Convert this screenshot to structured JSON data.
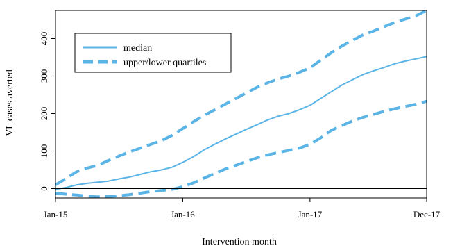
{
  "chart_data": {
    "type": "line",
    "title": "",
    "xlabel": "Intervention month",
    "ylabel": "VL cases averted",
    "x_ticks": [
      {
        "label": "Jan-15",
        "index": 0
      },
      {
        "label": "Jan-16",
        "index": 12
      },
      {
        "label": "Jan-17",
        "index": 24
      },
      {
        "label": "Dec-17",
        "index": 35
      }
    ],
    "xlim": [
      0,
      35
    ],
    "ylim": [
      -25,
      475
    ],
    "y_ticks": [
      0,
      100,
      200,
      300,
      400
    ],
    "reference_line_y": 0,
    "grid": false,
    "legend_position": "top-left",
    "line_color": "#5ab4e5",
    "series": [
      {
        "name": "median",
        "style": "solid",
        "x": [
          0,
          1,
          2,
          3,
          4,
          5,
          6,
          7,
          8,
          9,
          10,
          11,
          12,
          13,
          14,
          15,
          16,
          17,
          18,
          19,
          20,
          21,
          22,
          23,
          24,
          25,
          26,
          27,
          28,
          29,
          30,
          31,
          32,
          33,
          34,
          35
        ],
        "values": [
          -2,
          3,
          10,
          14,
          17,
          20,
          26,
          31,
          38,
          45,
          50,
          57,
          70,
          85,
          103,
          118,
          132,
          145,
          158,
          170,
          183,
          193,
          200,
          210,
          222,
          240,
          258,
          276,
          290,
          304,
          314,
          323,
          333,
          340,
          346,
          352
        ]
      },
      {
        "name": "upper/lower quartiles",
        "style": "dashed",
        "x": [
          0,
          1,
          2,
          3,
          4,
          5,
          6,
          7,
          8,
          9,
          10,
          11,
          12,
          13,
          14,
          15,
          16,
          17,
          18,
          19,
          20,
          21,
          22,
          23,
          24,
          25,
          26,
          27,
          28,
          29,
          30,
          31,
          32,
          33,
          34,
          35
        ],
        "values": [
          10,
          27,
          45,
          55,
          62,
          75,
          87,
          98,
          108,
          118,
          128,
          142,
          160,
          178,
          195,
          210,
          225,
          240,
          255,
          270,
          282,
          292,
          300,
          310,
          322,
          342,
          362,
          380,
          395,
          410,
          420,
          432,
          443,
          452,
          461,
          475
        ]
      },
      {
        "name": "",
        "style": "dashed",
        "x": [
          0,
          1,
          2,
          3,
          4,
          5,
          6,
          7,
          8,
          9,
          10,
          11,
          12,
          13,
          14,
          15,
          16,
          17,
          18,
          19,
          20,
          21,
          22,
          23,
          24,
          25,
          26,
          27,
          28,
          29,
          30,
          31,
          32,
          33,
          34,
          35
        ],
        "values": [
          -12,
          -15,
          -17,
          -20,
          -22,
          -21,
          -19,
          -16,
          -12,
          -8,
          -5,
          -2,
          5,
          15,
          28,
          40,
          52,
          62,
          72,
          82,
          90,
          96,
          102,
          108,
          118,
          135,
          155,
          168,
          180,
          190,
          198,
          206,
          213,
          219,
          225,
          233
        ]
      }
    ]
  }
}
